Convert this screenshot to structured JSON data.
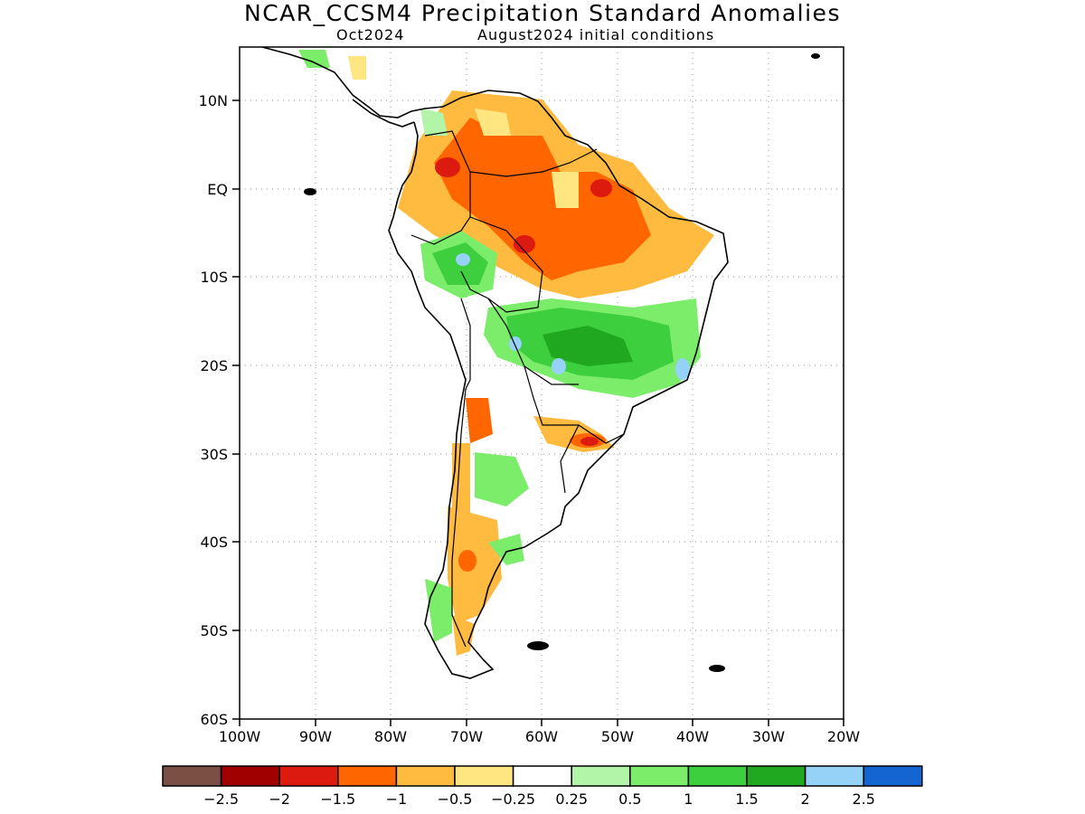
{
  "title": "NCAR_CCSM4 Precipitation Standard Anomalies",
  "subtitle_left": "Oct2024",
  "subtitle_right": "August2024 initial conditions",
  "map": {
    "lon_range": [
      -100,
      -20
    ],
    "lat_range": [
      -60,
      16
    ],
    "lat_labels": [
      "10N",
      "EQ",
      "10S",
      "20S",
      "30S",
      "40S",
      "50S",
      "60S"
    ],
    "lon_labels": [
      "100W",
      "90W",
      "80W",
      "70W",
      "60W",
      "50W",
      "40W",
      "30W",
      "20W"
    ]
  },
  "colorbar": {
    "colors": [
      "#7a5045",
      "#a00000",
      "#dd1a10",
      "#ff6600",
      "#ffbb40",
      "#ffe680",
      "#ffffff",
      "#b2f5a8",
      "#7ced6a",
      "#3ecf3e",
      "#20a820",
      "#96d2f8",
      "#1464d2"
    ],
    "labels": [
      "-2.5",
      "-2",
      "-1.5",
      "-1",
      "-0.5",
      "-0.25",
      "0.25",
      "0.5",
      "1",
      "1.5",
      "2",
      "2.5"
    ]
  }
}
